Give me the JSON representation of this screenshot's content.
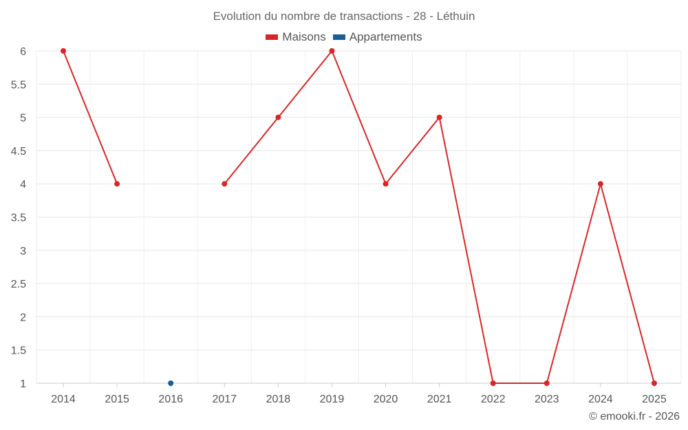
{
  "chart_data": {
    "type": "line",
    "title": "Evolution du nombre de transactions - 28 - Léthuin",
    "categories": [
      "2014",
      "2015",
      "2016",
      "2017",
      "2018",
      "2019",
      "2020",
      "2021",
      "2022",
      "2023",
      "2024",
      "2025"
    ],
    "series": [
      {
        "name": "Maisons",
        "color": "#d62728",
        "values": [
          6,
          4,
          null,
          4,
          5,
          6,
          4,
          5,
          1,
          1,
          4,
          1
        ]
      },
      {
        "name": "Appartements",
        "color": "#1a5e96",
        "values": [
          null,
          null,
          1,
          null,
          null,
          null,
          null,
          null,
          null,
          null,
          null,
          null
        ]
      }
    ],
    "ylim": [
      1,
      6
    ],
    "yticks": [
      1,
      1.5,
      2,
      2.5,
      3,
      3.5,
      4,
      4.5,
      5,
      5.5,
      6
    ],
    "ytick_labels": [
      "1",
      "1.5",
      "2",
      "2.5",
      "3",
      "3.5",
      "4",
      "4.5",
      "5",
      "5.5",
      "6"
    ],
    "grid": true,
    "legend": "top-center",
    "xlabel": "",
    "ylabel": ""
  },
  "credit": "© emooki.fr - 2026"
}
